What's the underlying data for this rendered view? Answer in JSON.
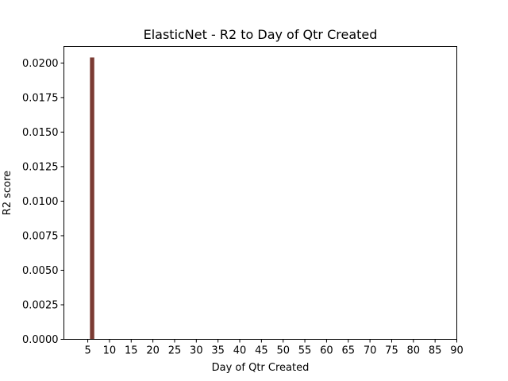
{
  "chart_data": {
    "type": "bar",
    "title": "ElasticNet - R2 to Day of Qtr Created",
    "xlabel": "Day of Qtr Created",
    "ylabel": "R2 score",
    "xlim": [
      -0.5,
      90
    ],
    "ylim": [
      0,
      0.0212
    ],
    "xticks": [
      5,
      10,
      15,
      20,
      25,
      30,
      35,
      40,
      45,
      50,
      55,
      60,
      65,
      70,
      75,
      80,
      85,
      90
    ],
    "yticks": [
      "0.0000",
      "0.0025",
      "0.0050",
      "0.0075",
      "0.0100",
      "0.0125",
      "0.0150",
      "0.0175",
      "0.0200"
    ],
    "grid": false,
    "bar_color": "#7b3b33",
    "x": [
      6
    ],
    "values": [
      0.0204
    ]
  }
}
